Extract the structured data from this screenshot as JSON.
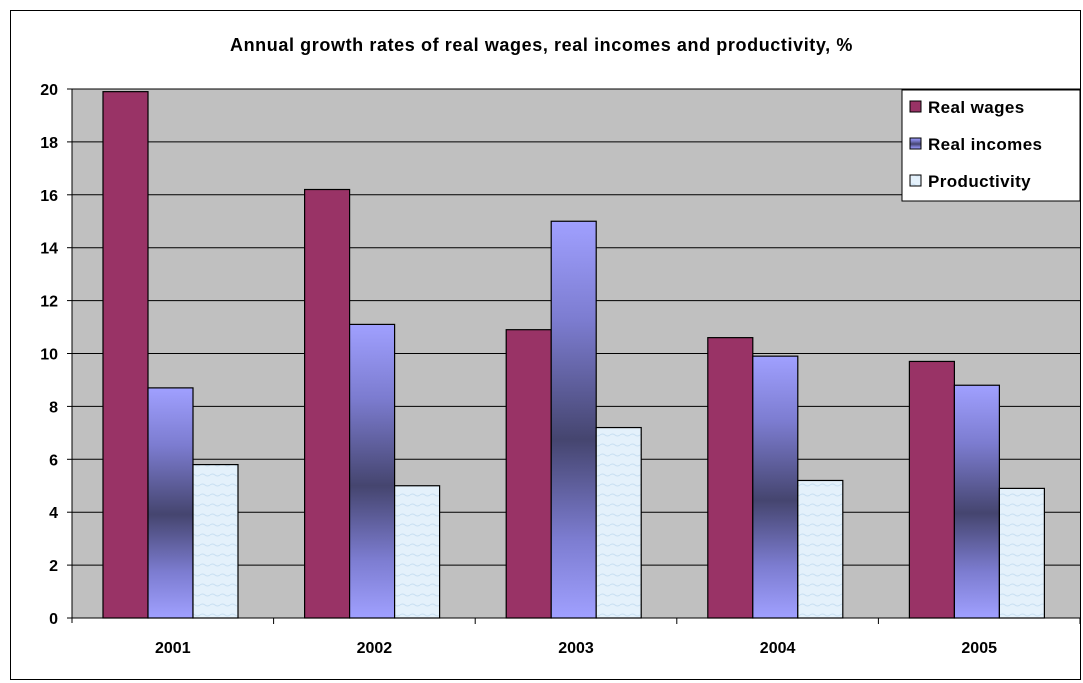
{
  "chart_data": {
    "type": "bar",
    "title": "Annual growth rates of real wages, real incomes and productivity, %",
    "xlabel": "",
    "ylabel": "",
    "categories": [
      "2001",
      "2002",
      "2003",
      "2004",
      "2005"
    ],
    "series": [
      {
        "name": "Real wages",
        "values": [
          19.9,
          16.2,
          10.9,
          10.6,
          9.7
        ]
      },
      {
        "name": "Real incomes",
        "values": [
          8.7,
          11.1,
          15.0,
          9.9,
          8.8
        ]
      },
      {
        "name": "Productivity",
        "values": [
          5.8,
          5.0,
          7.2,
          5.2,
          4.9
        ]
      }
    ],
    "ylim": [
      0,
      20
    ],
    "yticks": [
      "0",
      "2",
      "4",
      "6",
      "8",
      "10",
      "12",
      "14",
      "16",
      "18",
      "20"
    ],
    "grid": true,
    "legend_position": "top-right",
    "colors": {
      "plot_background": "#c0c0c0",
      "Real wages": "#993366",
      "Real incomes_light": "#9999ff",
      "Real incomes_dark": "#4a4a78",
      "Productivity": "#dfeefa"
    }
  }
}
